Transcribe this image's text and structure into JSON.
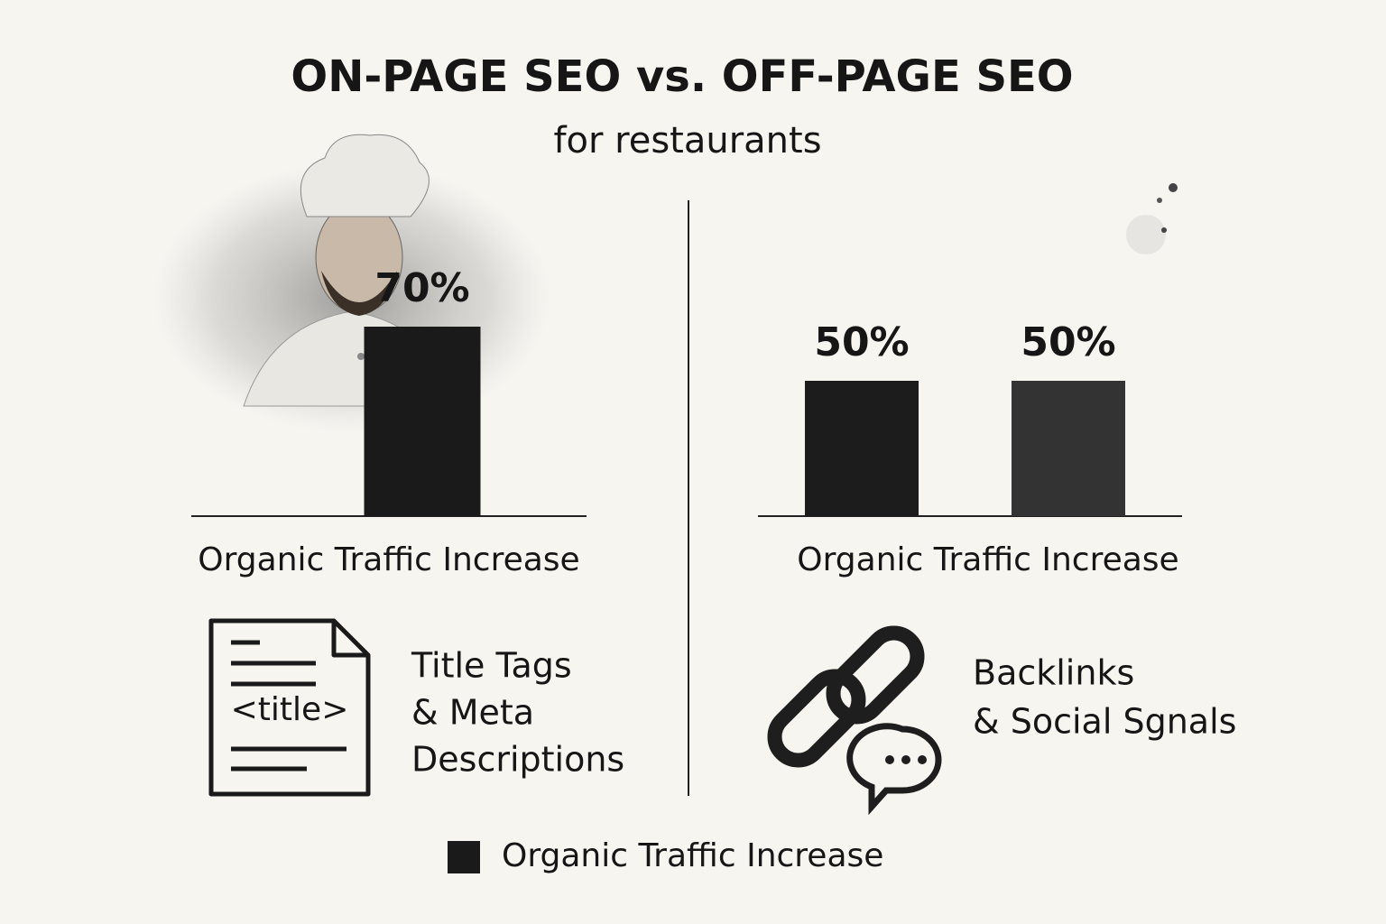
{
  "header": {
    "title": "ON-PAGE SEO vs. OFF-PAGE SEO",
    "subtitle": "for restaurants"
  },
  "chart_data": [
    {
      "type": "bar",
      "categories": [
        null
      ],
      "x_label": "Organic Traffic Increase",
      "series": [
        {
          "name": "Organic Traffic Increase",
          "colors": [
            "#1a1a1a"
          ],
          "values": [
            70
          ],
          "value_labels": [
            "70%"
          ]
        }
      ]
    },
    {
      "type": "bar",
      "categories": [
        null,
        null
      ],
      "x_label": "Organic Traffic Increase",
      "series": [
        {
          "name": "Organic Traffic Increase",
          "colors": [
            "#1c1c1c",
            "#333333"
          ],
          "values": [
            50,
            50
          ],
          "value_labels": [
            "50%",
            "50%"
          ]
        }
      ]
    }
  ],
  "panels": [
    {
      "icon_text": "<title>",
      "caption": [
        "Title Tags",
        "& Meta",
        "Descriptions"
      ]
    },
    {
      "caption": [
        "Backlinks",
        "& Social Sgnals"
      ]
    }
  ]
}
